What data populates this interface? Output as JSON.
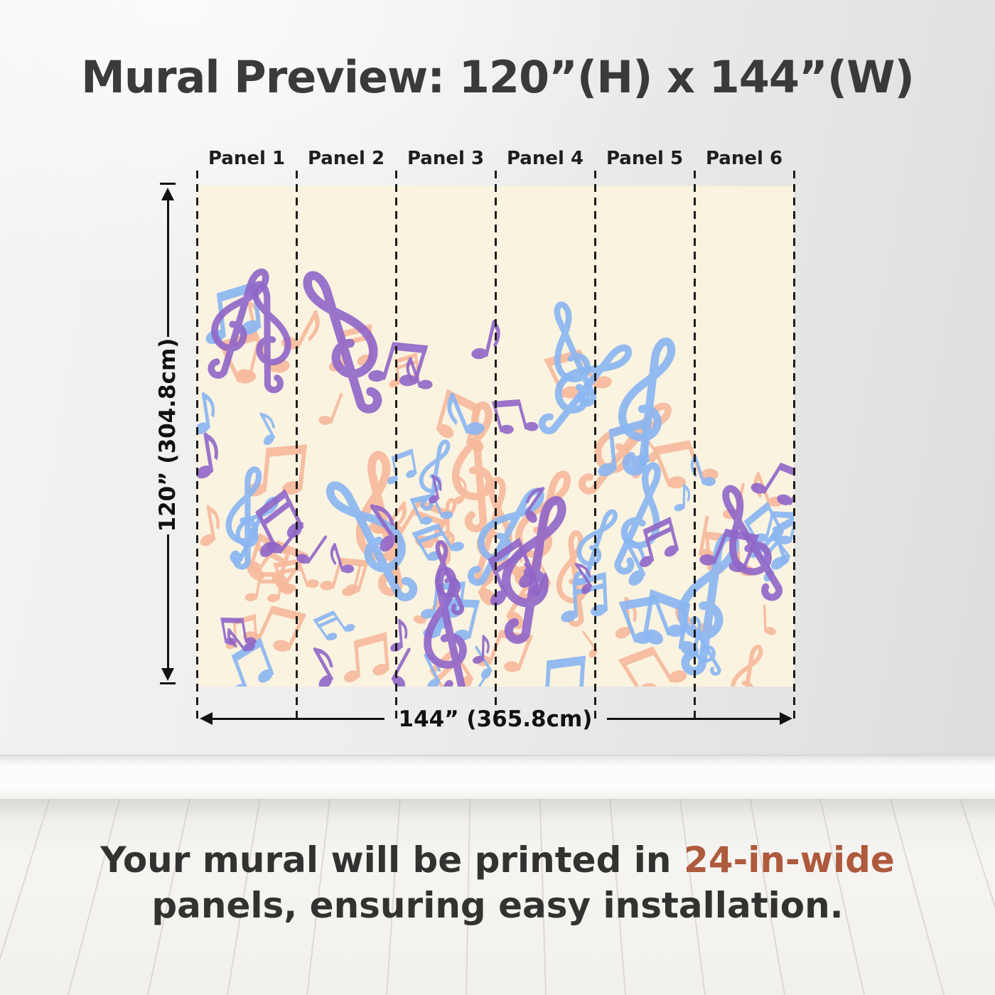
{
  "title": "Mural Preview: 120”(H) x 144”(W)",
  "panels": {
    "labels": [
      "Panel 1",
      "Panel 2",
      "Panel 3",
      "Panel 4",
      "Panel 5",
      "Panel 6"
    ]
  },
  "dimensions": {
    "height_label": "120” (304.8cm)",
    "width_label": "144” (365.8cm)"
  },
  "caption": {
    "line1_text": "Your mural will be printed in ",
    "line1_accent": "24-in-wide",
    "line2_text": "panels, ensuring easy installation.",
    "accent_color": "#ae5a3c"
  },
  "mural": {
    "background": "#faf3e0",
    "palette": {
      "purple": "#9066c8",
      "blue": "#8ab6f2",
      "peach": "#f7b99c"
    },
    "pattern_seed": 11,
    "counts": {
      "clefs": 27,
      "beamed": 48,
      "singles": 44
    }
  }
}
